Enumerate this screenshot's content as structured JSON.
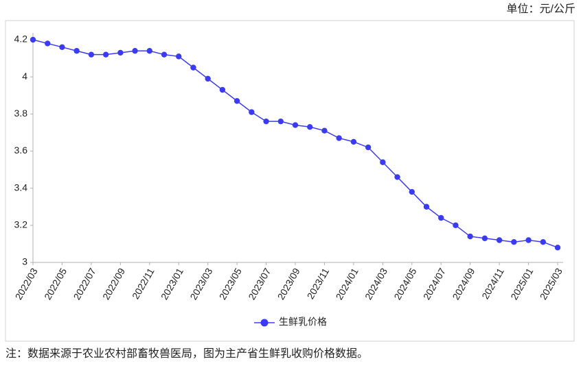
{
  "chart_data": {
    "type": "line",
    "unit_label": "单位：元/公斤",
    "note": "注：数据来源于农业农村部畜牧兽医局，图为主产省生鲜乳收购价格数据。",
    "categories": [
      "2022/03",
      null,
      "2022/05",
      null,
      "2022/07",
      null,
      "2022/09",
      null,
      "2022/11",
      null,
      "2023/01",
      null,
      "2023/03",
      null,
      "2023/05",
      null,
      "2023/07",
      null,
      "2023/09",
      null,
      "2023/11",
      null,
      "2024/01",
      null,
      "2024/03",
      null,
      "2024/05",
      null,
      "2024/07",
      null,
      "2024/09",
      null,
      "2024/11",
      null,
      "2025/01",
      null,
      "2025/03"
    ],
    "series": [
      {
        "name": "生鲜乳价格",
        "color": "#3b3bf5",
        "values": [
          4.2,
          4.18,
          4.16,
          4.14,
          4.12,
          4.12,
          4.13,
          4.14,
          4.14,
          4.12,
          4.11,
          4.05,
          3.99,
          3.93,
          3.87,
          3.81,
          3.76,
          3.76,
          3.74,
          3.73,
          3.71,
          3.67,
          3.65,
          3.62,
          3.54,
          3.46,
          3.38,
          3.3,
          3.24,
          3.2,
          3.14,
          3.13,
          3.12,
          3.11,
          3.12,
          3.11,
          3.08
        ]
      }
    ],
    "ylim": [
      3,
      4.2
    ],
    "yticks": [
      3,
      3.2,
      3.4,
      3.6,
      3.8,
      4,
      4.2
    ],
    "grid": false,
    "legend": "bottom"
  }
}
